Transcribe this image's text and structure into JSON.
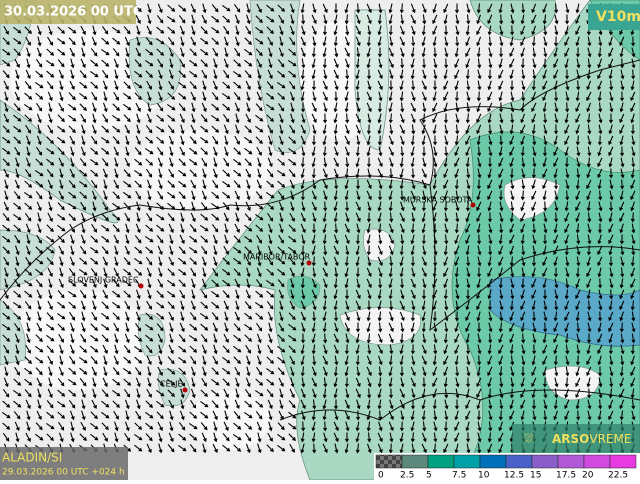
{
  "header": {
    "title": "30.03.2026 00 UTC",
    "field": "V10m"
  },
  "cities": [
    {
      "label": "MURSKA SOBOTA"
    },
    {
      "label": "MARIBOR/TABOR"
    },
    {
      "label": "SLOVENJ GRADEC"
    },
    {
      "label": "CELJE"
    }
  ],
  "footer": {
    "model": "ALADIN/SI",
    "run": "29.03.2026 00 UTC +024 h",
    "brand": "ARSO",
    "brand_suffix": "VREME"
  },
  "legend": {
    "labels": [
      "0",
      "2.5",
      "5",
      "7.5",
      "10",
      "12.5",
      "15",
      "17.5",
      "20",
      "22.5"
    ],
    "colors": [
      "#5a5a5a",
      "#5d8a7c",
      "#00a080",
      "#00a0a8",
      "#0070b8",
      "#4a62c8",
      "#8a5ec8",
      "#b05ad8",
      "#d04ae0",
      "#e83ae0"
    ]
  }
}
